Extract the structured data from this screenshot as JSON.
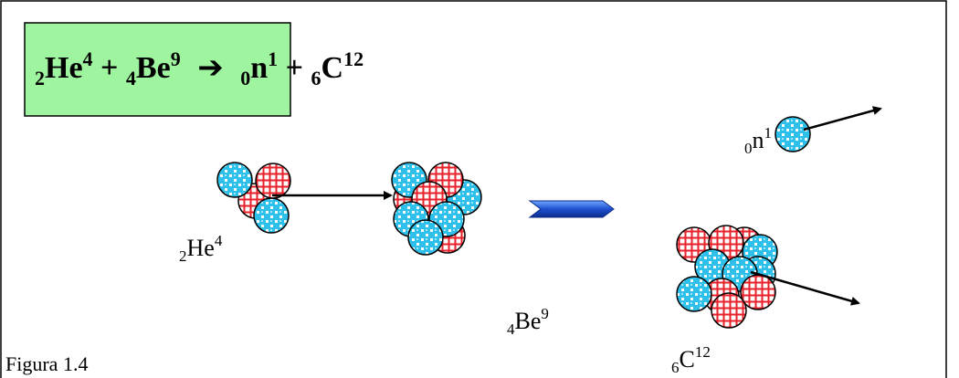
{
  "equation": {
    "reactants": [
      {
        "sub": "2",
        "symbol": "He",
        "sup": "4"
      },
      {
        "sub": "4",
        "symbol": "Be",
        "sup": "9"
      }
    ],
    "plus": "+",
    "arrow": "➔",
    "products": [
      {
        "sub": "0",
        "symbol": "n",
        "sup": "1"
      },
      {
        "sub": "6",
        "symbol": "C",
        "sup": "12"
      }
    ]
  },
  "labels": {
    "helium": {
      "sub": "2",
      "symbol": "He",
      "sup": "4"
    },
    "beryllium": {
      "sub": "4",
      "symbol": "Be",
      "sup": "9"
    },
    "neutron": {
      "sub": "0",
      "symbol": "n",
      "sup": "1"
    },
    "carbon": {
      "sub": "6",
      "symbol": "C",
      "sup": "12"
    }
  },
  "caption": "Figura 1.4"
}
